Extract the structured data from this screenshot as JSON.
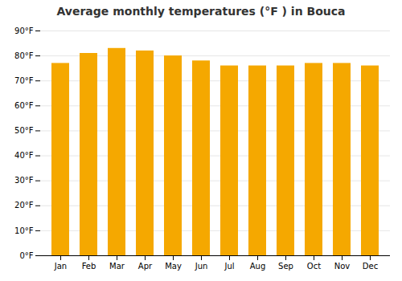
{
  "chart_data": {
    "type": "bar",
    "title": "Average monthly temperatures (°F ) in Bouca",
    "categories": [
      "Jan",
      "Feb",
      "Mar",
      "Apr",
      "May",
      "Jun",
      "Jul",
      "Aug",
      "Sep",
      "Oct",
      "Nov",
      "Dec"
    ],
    "values": [
      77,
      81,
      83,
      82,
      80,
      78,
      76,
      76,
      76,
      77,
      77,
      76
    ],
    "color": "#F5A800",
    "ylim": [
      0,
      90
    ],
    "yticks": [
      {
        "value": 0,
        "label": "0°F"
      },
      {
        "value": 10,
        "label": "10°F"
      },
      {
        "value": 20,
        "label": "20°F"
      },
      {
        "value": 30,
        "label": "30°F"
      },
      {
        "value": 40,
        "label": "40°F"
      },
      {
        "value": 50,
        "label": "50°F"
      },
      {
        "value": 60,
        "label": "60°F"
      },
      {
        "value": 70,
        "label": "70°F"
      },
      {
        "value": 80,
        "label": "80°F"
      },
      {
        "value": 90,
        "label": "90°F"
      }
    ],
    "grid": true
  }
}
